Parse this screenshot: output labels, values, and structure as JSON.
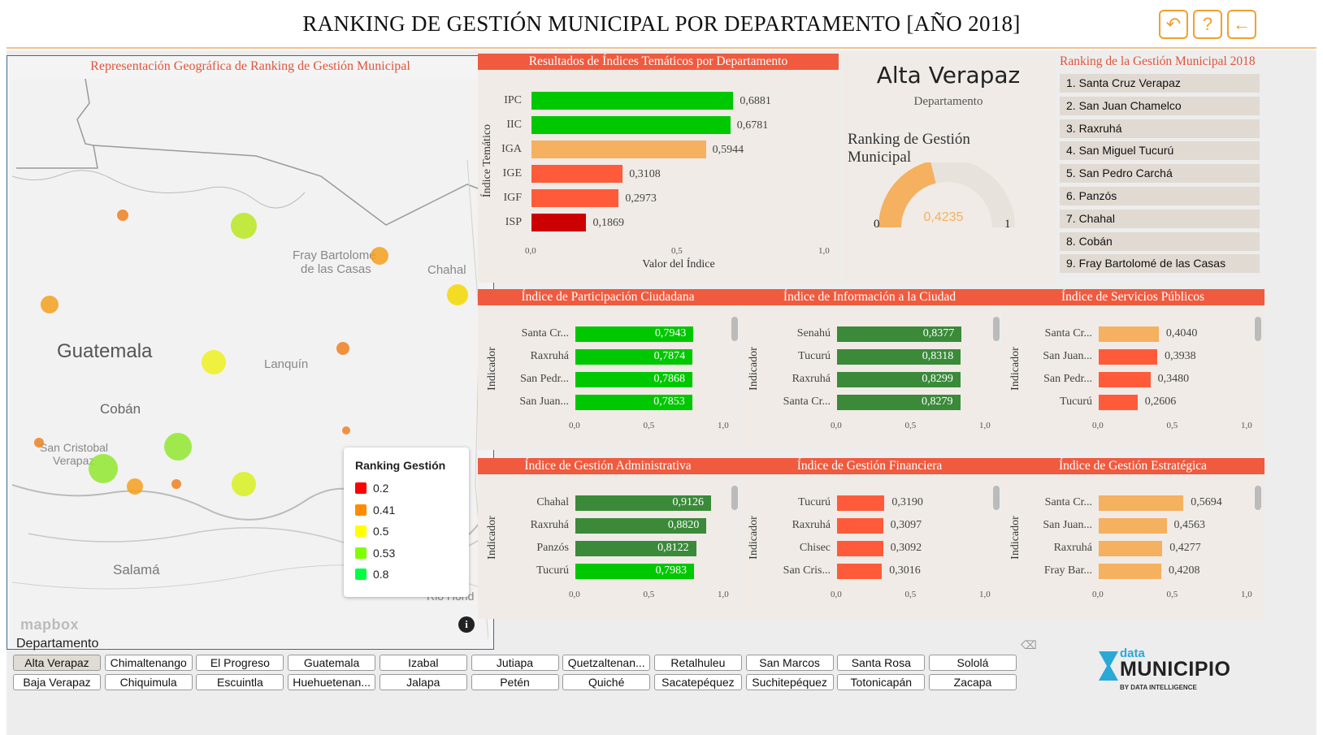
{
  "header": {
    "title": "RANKING DE GESTIÓN MUNICIPAL POR DEPARTAMENTO [AÑO 2018]",
    "buttons": [
      {
        "icon": "undo-icon"
      },
      {
        "icon": "help-icon"
      },
      {
        "icon": "back-arrow-icon"
      }
    ]
  },
  "map": {
    "title": "Representación Geográfica de Ranking de Gestión Municipal",
    "places": [
      "Guatemala",
      "Cobán",
      "Salamá",
      "Fray Bartolomé\nde las Casas",
      "Chahal",
      "Lanquín",
      "San Cristobal\nVerapaz",
      "Rio Hond"
    ],
    "legend": {
      "title": "Ranking Gestión",
      "items": [
        {
          "label": "0.2",
          "color": "#ff0000"
        },
        {
          "label": "0.41",
          "color": "#ff8c00"
        },
        {
          "label": "0.5",
          "color": "#ffff00"
        },
        {
          "label": "0.53",
          "color": "#80ff00"
        },
        {
          "label": "0.8",
          "color": "#00ff40"
        }
      ]
    },
    "attribution": "mapbox"
  },
  "thematic": {
    "title": "Resultados de Índices Temáticos por Departamento",
    "y_axis_label": "Índice Temático",
    "x_axis_label": "Valor del Índice",
    "ticks": [
      "0,0",
      "0,5",
      "1,0"
    ],
    "bars": [
      {
        "label": "IPC",
        "value": 0.6881,
        "text": "0,6881",
        "color": "#00c800"
      },
      {
        "label": "IIC",
        "value": 0.6781,
        "text": "0,6781",
        "color": "#00c800"
      },
      {
        "label": "IGA",
        "value": 0.5944,
        "text": "0,5944",
        "color": "#f5b060"
      },
      {
        "label": "IGE",
        "value": 0.3108,
        "text": "0,3108",
        "color": "#ff5b3a"
      },
      {
        "label": "IGF",
        "value": 0.2973,
        "text": "0,2973",
        "color": "#ff5b3a"
      },
      {
        "label": "ISP",
        "value": 0.1869,
        "text": "0,1869",
        "color": "#cc0000"
      }
    ]
  },
  "department": {
    "name": "Alta Verapaz",
    "subtitle": "Departamento",
    "ranking_title": "Ranking de Gestión Municipal",
    "gauge": {
      "value": 0.4235,
      "text": "0,4235",
      "min": "0",
      "max": "1",
      "color": "#f5b060"
    }
  },
  "ranking": {
    "title": "Ranking de la Gestión Municipal 2018",
    "items": [
      "1. Santa Cruz Verapaz",
      "2. San Juan Chamelco",
      "3. Raxruhá",
      "4. San Miguel Tucurú",
      "5. San Pedro Carchá",
      "6. Panzós",
      "7. Chahal",
      "8. Cobán",
      "9. Fray Bartolomé de las Casas"
    ]
  },
  "indicators": [
    {
      "title": "Índice de Participación Ciudadana",
      "y_label": "Indicador",
      "ticks": [
        "0,0",
        "0,5",
        "1,0"
      ],
      "bars": [
        {
          "label": "Santa Cr...",
          "value": 0.7943,
          "text": "0,7943",
          "color": "#00c800",
          "inside": true
        },
        {
          "label": "Raxruhá",
          "value": 0.7874,
          "text": "0,7874",
          "color": "#00c800",
          "inside": true
        },
        {
          "label": "San Pedr...",
          "value": 0.7868,
          "text": "0,7868",
          "color": "#00c800",
          "inside": true
        },
        {
          "label": "San Juan...",
          "value": 0.7853,
          "text": "0,7853",
          "color": "#00c800",
          "inside": true
        }
      ]
    },
    {
      "title": "Índice de Información a la Ciudad",
      "y_label": "Indicador",
      "ticks": [
        "0,0",
        "0,5",
        "1,0"
      ],
      "bars": [
        {
          "label": "Senahú",
          "value": 0.8377,
          "text": "0,8377",
          "color": "#3a8a3a",
          "inside": true
        },
        {
          "label": "Tucurú",
          "value": 0.8318,
          "text": "0,8318",
          "color": "#3a8a3a",
          "inside": true
        },
        {
          "label": "Raxruhá",
          "value": 0.8299,
          "text": "0,8299",
          "color": "#3a8a3a",
          "inside": true
        },
        {
          "label": "Santa Cr...",
          "value": 0.8279,
          "text": "0,8279",
          "color": "#3a8a3a",
          "inside": true
        }
      ]
    },
    {
      "title": "Índice de Servicios Públicos",
      "y_label": "Indicador",
      "ticks": [
        "0,0",
        "0,5",
        "1,0"
      ],
      "bars": [
        {
          "label": "Santa Cr...",
          "value": 0.404,
          "text": "0,4040",
          "color": "#f5b060",
          "inside": false
        },
        {
          "label": "San Juan...",
          "value": 0.3938,
          "text": "0,3938",
          "color": "#ff5b3a",
          "inside": false
        },
        {
          "label": "San Pedr...",
          "value": 0.348,
          "text": "0,3480",
          "color": "#ff5b3a",
          "inside": false
        },
        {
          "label": "Tucurú",
          "value": 0.2606,
          "text": "0,2606",
          "color": "#ff5b3a",
          "inside": false
        }
      ]
    },
    {
      "title": "Índice de Gestión Administrativa",
      "y_label": "Indicador",
      "ticks": [
        "0,0",
        "0,5",
        "1,0"
      ],
      "bars": [
        {
          "label": "Chahal",
          "value": 0.9126,
          "text": "0,9126",
          "color": "#3a8a3a",
          "inside": true
        },
        {
          "label": "Raxruhá",
          "value": 0.882,
          "text": "0,8820",
          "color": "#3a8a3a",
          "inside": true
        },
        {
          "label": "Panzós",
          "value": 0.8122,
          "text": "0,8122",
          "color": "#3a8a3a",
          "inside": true
        },
        {
          "label": "Tucurú",
          "value": 0.7983,
          "text": "0,7983",
          "color": "#00c800",
          "inside": true
        }
      ]
    },
    {
      "title": "Índice de Gestión Financiera",
      "y_label": "Indicador",
      "ticks": [
        "0,0",
        "0,5",
        "1,0"
      ],
      "bars": [
        {
          "label": "Tucurú",
          "value": 0.319,
          "text": "0,3190",
          "color": "#ff5b3a",
          "inside": false
        },
        {
          "label": "Raxruhá",
          "value": 0.3097,
          "text": "0,3097",
          "color": "#ff5b3a",
          "inside": false
        },
        {
          "label": "Chisec",
          "value": 0.3092,
          "text": "0,3092",
          "color": "#ff5b3a",
          "inside": false
        },
        {
          "label": "San Cris...",
          "value": 0.3016,
          "text": "0,3016",
          "color": "#ff5b3a",
          "inside": false
        }
      ]
    },
    {
      "title": "Índice de Gestión Estratégica",
      "y_label": "Indicador",
      "ticks": [
        "0,0",
        "0,5",
        "1,0"
      ],
      "bars": [
        {
          "label": "Santa Cr...",
          "value": 0.5694,
          "text": "0,5694",
          "color": "#f5b060",
          "inside": false
        },
        {
          "label": "San Juan...",
          "value": 0.4563,
          "text": "0,4563",
          "color": "#f5b060",
          "inside": false
        },
        {
          "label": "Raxruhá",
          "value": 0.4277,
          "text": "0,4277",
          "color": "#f5b060",
          "inside": false
        },
        {
          "label": "Fray Bar...",
          "value": 0.4208,
          "text": "0,4208",
          "color": "#f5b060",
          "inside": false
        }
      ]
    }
  ],
  "slicer": {
    "title": "Departamento",
    "selected": "Alta Verapaz",
    "row1": [
      "Alta Verapaz",
      "Chimaltenango",
      "El Progreso",
      "Guatemala",
      "Izabal",
      "Jutiapa",
      "Quetzaltenan...",
      "Retalhuleu",
      "San Marcos",
      "Santa Rosa",
      "Sololá"
    ],
    "row2": [
      "Baja Verapaz",
      "Chiquimula",
      "Escuintla",
      "Huehuetenan...",
      "Jalapa",
      "Petén",
      "Quiché",
      "Sacatepéquez",
      "Suchitepéquez",
      "Totonicapán",
      "Zacapa"
    ]
  },
  "logo": {
    "small": "data",
    "big": "MUNICIPIO",
    "tagline": "BY DATA INTELLIGENCE"
  }
}
